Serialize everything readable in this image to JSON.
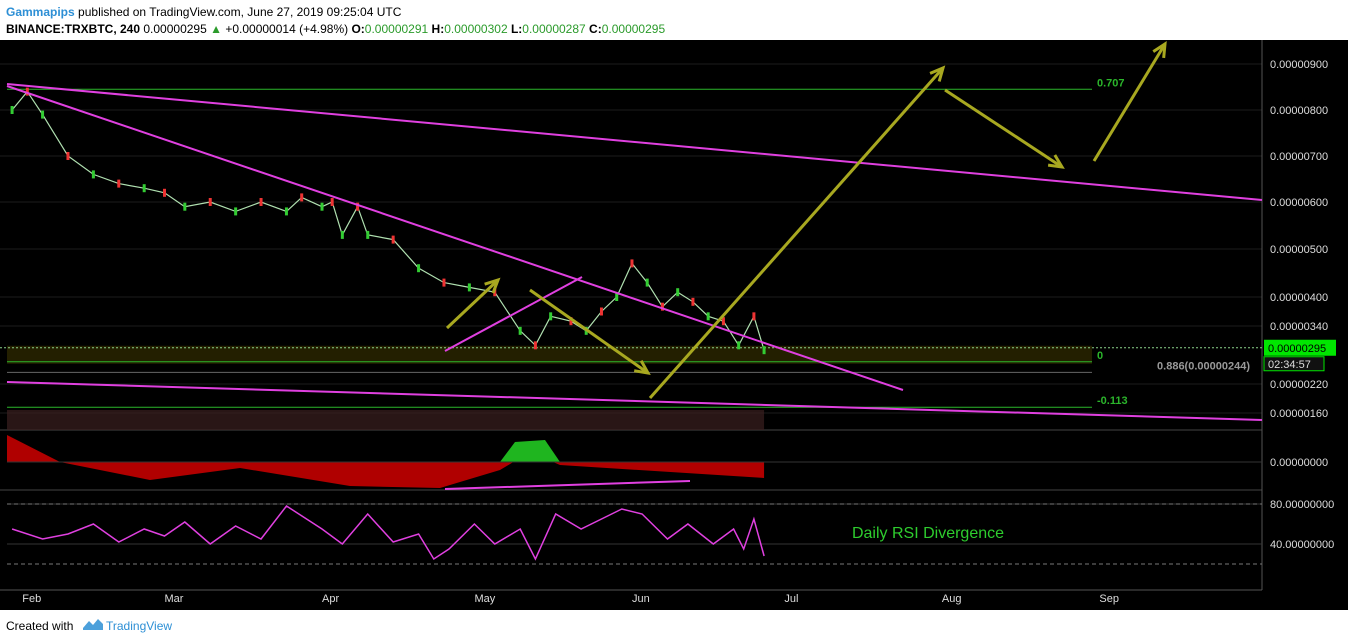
{
  "header": {
    "author": "Gammapips",
    "published": "published on TradingView.com, June 27, 2019 09:25:04 UTC",
    "symbol": "BINANCE:TRXBTC, 240",
    "price": "0.00000295",
    "change": "+0.00000014 (+4.98%)",
    "o_label": "O:",
    "o": "0.00000291",
    "h_label": "H:",
    "h": "0.00000302",
    "l_label": "L:",
    "l": "0.00000287",
    "c_label": "C:",
    "c": "0.00000295"
  },
  "footer": {
    "created": "Created with",
    "brand": "TradingView"
  },
  "colors": {
    "background": "#000000",
    "trendline": "#e040e0",
    "arrow": "#a8a820",
    "fib": "#2bb52b",
    "price_tag": "#00e600",
    "rsi": "#e040e0"
  },
  "chart_data": {
    "type": "line",
    "title": "",
    "x_tick_labels": [
      "Feb",
      "Mar",
      "Apr",
      "May",
      "Jun",
      "Jul",
      "Aug",
      "Sep"
    ],
    "main": {
      "y_tick_labels": [
        "0.00000900",
        "0.00000800",
        "0.00000700",
        "0.00000600",
        "0.00000500",
        "0.00000400",
        "0.00000340",
        "0.00000220",
        "0.00000160"
      ],
      "y_ticks": [
        9e-06,
        8e-06,
        7e-06,
        6e-06,
        5e-06,
        4e-06,
        3.4e-06,
        2.2e-06,
        1.6e-06
      ],
      "last_price_label": "0.00000295",
      "last_price": 2.95e-06,
      "countdown": "02:34:57",
      "fib_levels": [
        {
          "label": "0.707",
          "value": 8.45e-06
        },
        {
          "label": "0",
          "value": 2.66e-06
        },
        {
          "label": "0.886(0.00000244)",
          "value": 2.44e-06
        },
        {
          "label": "-0.113",
          "value": 1.72e-06
        }
      ],
      "series": [
        {
          "x": [
            "2019-01-30",
            "2019-02-02",
            "2019-02-05",
            "2019-02-10",
            "2019-02-15",
            "2019-02-20",
            "2019-02-25",
            "2019-03-01",
            "2019-03-05",
            "2019-03-10",
            "2019-03-15",
            "2019-03-20",
            "2019-03-25",
            "2019-03-28",
            "2019-04-01",
            "2019-04-03",
            "2019-04-05",
            "2019-04-08",
            "2019-04-10",
            "2019-04-15",
            "2019-04-20",
            "2019-04-25",
            "2019-04-30",
            "2019-05-05",
            "2019-05-10",
            "2019-05-13",
            "2019-05-16",
            "2019-05-20",
            "2019-05-23",
            "2019-05-26",
            "2019-05-29",
            "2019-06-01",
            "2019-06-04",
            "2019-06-07",
            "2019-06-10",
            "2019-06-13",
            "2019-06-16",
            "2019-06-19",
            "2019-06-22",
            "2019-06-25",
            "2019-06-27"
          ],
          "values": [
            8e-06,
            8.4e-06,
            7.9e-06,
            7e-06,
            6.6e-06,
            6.4e-06,
            6.3e-06,
            6.2e-06,
            5.9e-06,
            6e-06,
            5.8e-06,
            6e-06,
            5.8e-06,
            6.1e-06,
            5.9e-06,
            6e-06,
            5.3e-06,
            5.9e-06,
            5.3e-06,
            5.2e-06,
            4.6e-06,
            4.3e-06,
            4.2e-06,
            4.1e-06,
            3.3e-06,
            3e-06,
            3.6e-06,
            3.5e-06,
            3.3e-06,
            3.7e-06,
            4e-06,
            4.7e-06,
            4.3e-06,
            3.8e-06,
            4.1e-06,
            3.9e-06,
            3.6e-06,
            3.5e-06,
            3e-06,
            3.6e-06,
            2.9e-06
          ]
        }
      ],
      "annotation": "Daily RSI Divergence"
    },
    "macd": {
      "y_tick_labels": [
        "0.00000000"
      ],
      "y_ticks": [
        0
      ]
    },
    "rsi": {
      "y_tick_labels": [
        "80.00000000",
        "40.00000000"
      ],
      "y_ticks": [
        80,
        40
      ],
      "series": [
        {
          "x": [
            "2019-01-30",
            "2019-02-05",
            "2019-02-10",
            "2019-02-15",
            "2019-02-20",
            "2019-02-25",
            "2019-03-01",
            "2019-03-05",
            "2019-03-10",
            "2019-03-15",
            "2019-03-20",
            "2019-03-25",
            "2019-04-01",
            "2019-04-05",
            "2019-04-10",
            "2019-04-15",
            "2019-04-20",
            "2019-04-23",
            "2019-04-26",
            "2019-05-01",
            "2019-05-05",
            "2019-05-10",
            "2019-05-13",
            "2019-05-17",
            "2019-05-22",
            "2019-05-26",
            "2019-05-30",
            "2019-06-03",
            "2019-06-08",
            "2019-06-12",
            "2019-06-17",
            "2019-06-21",
            "2019-06-23",
            "2019-06-25",
            "2019-06-27"
          ],
          "values": [
            55,
            45,
            50,
            60,
            42,
            55,
            48,
            62,
            40,
            58,
            45,
            78,
            55,
            40,
            70,
            42,
            50,
            25,
            35,
            60,
            40,
            55,
            25,
            70,
            55,
            65,
            75,
            70,
            45,
            60,
            40,
            55,
            35,
            65,
            28
          ]
        }
      ]
    }
  }
}
